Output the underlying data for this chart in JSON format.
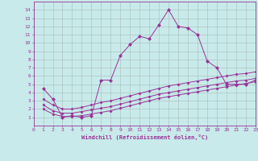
{
  "xlabel": "Windchill (Refroidissement éolien,°C)",
  "bg_color": "#c8eaea",
  "line_color": "#993399",
  "grid_color": "#aabbbb",
  "xlim": [
    0,
    23
  ],
  "ylim": [
    0,
    15
  ],
  "xticks": [
    0,
    1,
    2,
    3,
    4,
    5,
    6,
    7,
    8,
    9,
    10,
    11,
    12,
    13,
    14,
    15,
    16,
    17,
    18,
    19,
    20,
    21,
    22,
    23
  ],
  "yticks": [
    1,
    2,
    3,
    4,
    5,
    6,
    7,
    8,
    9,
    10,
    11,
    12,
    13,
    14
  ],
  "line1_x": [
    1,
    2,
    3,
    4,
    5,
    6,
    7,
    8,
    9,
    10,
    11,
    12,
    13,
    14,
    15,
    16,
    17,
    18,
    19,
    20,
    21,
    22,
    23
  ],
  "line1_y": [
    4.5,
    3.2,
    1.0,
    1.2,
    1.0,
    1.2,
    5.5,
    5.5,
    8.5,
    9.8,
    10.8,
    10.5,
    12.2,
    14.0,
    12.0,
    11.8,
    11.0,
    7.8,
    7.0,
    5.0,
    5.0,
    5.0,
    5.5
  ],
  "line2_x": [
    1,
    2,
    3,
    4,
    5,
    6,
    7,
    8,
    9,
    10,
    11,
    12,
    13,
    14,
    15,
    16,
    17,
    18,
    19,
    20,
    21,
    22,
    23
  ],
  "line2_y": [
    3.2,
    2.5,
    2.0,
    2.0,
    2.2,
    2.5,
    2.8,
    3.0,
    3.3,
    3.6,
    3.9,
    4.2,
    4.5,
    4.8,
    5.0,
    5.2,
    5.4,
    5.6,
    5.8,
    6.0,
    6.2,
    6.3,
    6.5
  ],
  "line3_x": [
    1,
    2,
    3,
    4,
    5,
    6,
    7,
    8,
    9,
    10,
    11,
    12,
    13,
    14,
    15,
    16,
    17,
    18,
    19,
    20,
    21,
    22,
    23
  ],
  "line3_y": [
    2.5,
    1.8,
    1.5,
    1.5,
    1.7,
    1.9,
    2.1,
    2.3,
    2.6,
    2.9,
    3.2,
    3.5,
    3.8,
    4.0,
    4.2,
    4.4,
    4.6,
    4.8,
    5.0,
    5.2,
    5.4,
    5.5,
    5.7
  ],
  "line4_x": [
    1,
    2,
    3,
    4,
    5,
    6,
    7,
    8,
    9,
    10,
    11,
    12,
    13,
    14,
    15,
    16,
    17,
    18,
    19,
    20,
    21,
    22,
    23
  ],
  "line4_y": [
    2.0,
    1.4,
    1.1,
    1.1,
    1.2,
    1.4,
    1.6,
    1.8,
    2.1,
    2.4,
    2.7,
    3.0,
    3.3,
    3.5,
    3.7,
    3.9,
    4.1,
    4.3,
    4.5,
    4.7,
    4.9,
    5.1,
    5.3
  ]
}
